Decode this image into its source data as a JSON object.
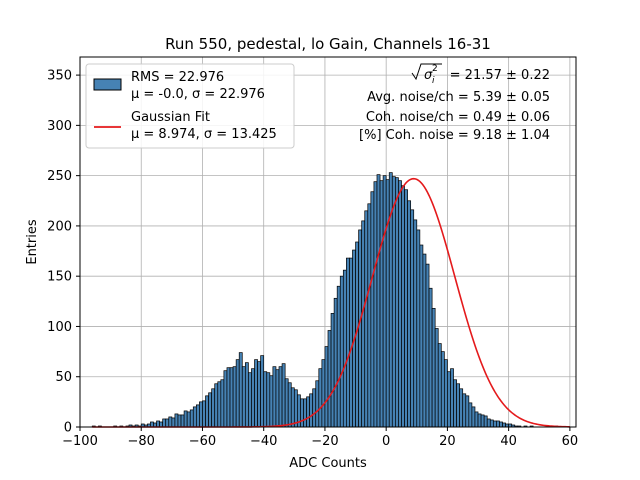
{
  "chart_data": {
    "type": "bar",
    "title": "Run 550, pedestal, lo Gain, Channels 16-31",
    "xlabel": "ADC Counts",
    "ylabel": "Entries",
    "xlim": [
      -100,
      62
    ],
    "ylim": [
      0,
      368
    ],
    "x_ticks": [
      "−100",
      "−80",
      "−60",
      "−40",
      "−20",
      "0",
      "20",
      "40",
      "60"
    ],
    "x_tick_values": [
      -100,
      -80,
      -60,
      -40,
      -20,
      0,
      20,
      40,
      60
    ],
    "y_ticks": [
      "0",
      "50",
      "100",
      "150",
      "200",
      "250",
      "300",
      "350"
    ],
    "y_tick_values": [
      0,
      50,
      100,
      150,
      200,
      250,
      300,
      350
    ],
    "grid": true,
    "bin_start": -96,
    "bin_width": 1,
    "histogram_values": [
      1,
      0,
      1,
      0,
      0,
      0,
      0,
      1,
      0,
      1,
      0,
      1,
      2,
      1,
      2,
      1,
      3,
      2,
      3,
      5,
      4,
      6,
      5,
      8,
      8,
      10,
      9,
      13,
      12,
      12,
      16,
      15,
      17,
      20,
      22,
      25,
      26,
      31,
      34,
      38,
      43,
      45,
      47,
      56,
      59,
      59,
      60,
      67,
      74,
      60,
      64,
      54,
      58,
      67,
      65,
      71,
      55,
      54,
      51,
      60,
      57,
      60,
      63,
      48,
      44,
      39,
      37,
      32,
      28,
      28,
      30,
      33,
      38,
      46,
      58,
      67,
      80,
      96,
      113,
      128,
      140,
      150,
      156,
      168,
      168,
      176,
      184,
      196,
      205,
      215,
      222,
      234,
      244,
      251,
      245,
      250,
      246,
      253,
      249,
      248,
      245,
      240,
      236,
      225,
      216,
      206,
      196,
      181,
      172,
      162,
      138,
      118,
      98,
      83,
      75,
      67,
      55,
      58,
      47,
      43,
      38,
      33,
      31,
      24,
      20,
      15,
      13,
      12,
      11,
      8,
      7,
      6,
      6,
      5,
      4,
      3,
      3,
      2,
      1,
      1,
      0,
      1,
      0,
      1,
      0,
      0,
      0,
      0,
      0,
      0,
      0,
      1,
      0,
      0,
      0,
      0,
      0
    ],
    "series": [
      {
        "name": "RMS = 22.976",
        "sub": "μ = -0.0, σ = 22.976",
        "kind": "histogram",
        "color": "#4682b4"
      },
      {
        "name": "Gaussian Fit",
        "sub": "μ = 8.974, σ = 13.425",
        "kind": "line",
        "color": "#e41a1c",
        "mu": 8.974,
        "sigma": 13.425,
        "amplitude": 247
      }
    ],
    "legend_position": "upper-left",
    "annotations": {
      "sigma_i_value": "= 21.57 ± 0.22",
      "avg_noise": "Avg. noise/ch = 5.39 ± 0.05",
      "coh_noise": "Coh. noise/ch = 0.49 ± 0.06",
      "pct_coh_noise": "[%] Coh. noise = 9.18 ± 1.04"
    }
  }
}
